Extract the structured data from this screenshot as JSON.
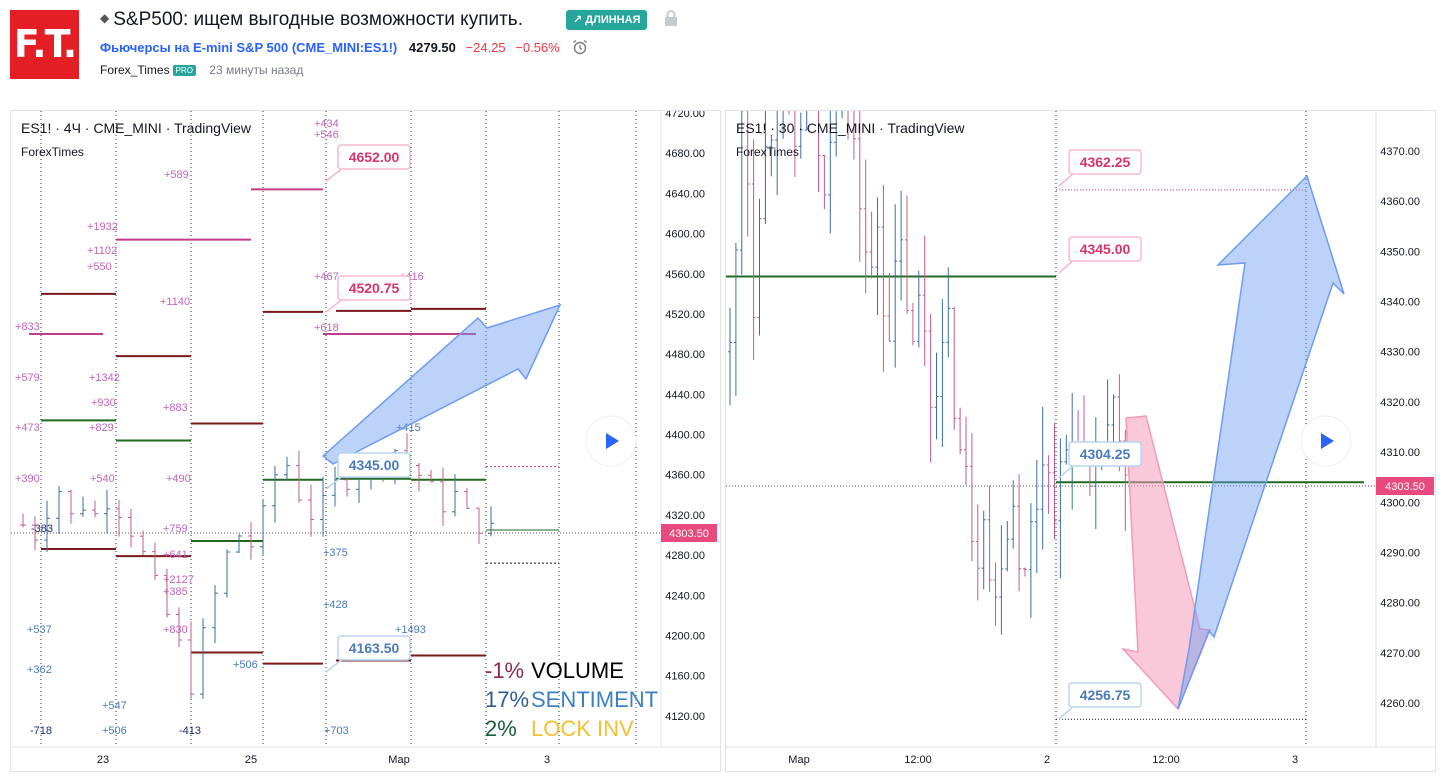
{
  "header": {
    "logo_text": "F.T.",
    "title": "S&P500: ищем выгодные возможности купить.",
    "badge": "↗ ДЛИННАЯ",
    "symbol_name": "Фьючерсы на E-mini S&P 500",
    "symbol_code": "(CME_MINI:ES1!)",
    "price": "4279.50",
    "change": "−24.25",
    "change_pct": "−0.56%",
    "author": "Forex_Times",
    "pro_badge": "PRO",
    "time_ago": "23 минуты назад"
  },
  "colors": {
    "accent": "#26a69a",
    "negative": "#f23645",
    "link": "#2962ff",
    "logo": "#e31e24",
    "price_tag": "#e84a7d",
    "bull_candle": "#3b6ea5",
    "bear_candle": "#c25c8c",
    "arrow_blue": "#6d9cf0",
    "arrow_pink": "#f49ab9"
  },
  "left_chart": {
    "legend": "ES1! · 4Ч · CME_MINI · TradingView",
    "author": "ForexTimes",
    "y_ticks": [
      "4720.00",
      "4680.00",
      "4640.00",
      "4600.00",
      "4560.00",
      "4520.00",
      "4480.00",
      "4440.00",
      "4400.00",
      "4360.00",
      "4320.00",
      "4280.00",
      "4240.00",
      "4200.00",
      "4160.00",
      "4120.00"
    ],
    "x_ticks": [
      "23",
      "25",
      "Мар",
      "3"
    ],
    "current_price": "4303.50",
    "labels": [
      {
        "text": "4652.00",
        "value": 4652,
        "style": "pink"
      },
      {
        "text": "4520.75",
        "value": 4520.75,
        "style": "pink"
      },
      {
        "text": "4345.00",
        "value": 4345,
        "style": "blue"
      },
      {
        "text": "4163.50",
        "value": 4163.5,
        "style": "blue"
      }
    ],
    "pink_annotations": [
      "+434",
      "+546",
      "+589",
      "+1932",
      "+1102",
      "+550",
      "+1140",
      "+467",
      "+416",
      "+833",
      "+618",
      "+579",
      "+1342",
      "+930",
      "+883",
      "+473",
      "+829",
      "+390",
      "+540",
      "+490",
      "+759",
      "+641",
      "+2127",
      "+385",
      "+830"
    ],
    "blue_annotations": [
      "-383",
      "+415",
      "+375",
      "+428",
      "+537",
      "+1493",
      "+362",
      "+506",
      "+547",
      "+506",
      "-718",
      "-413",
      "+703"
    ],
    "stats": [
      {
        "value": "-1%",
        "label": "VOLUME",
        "value_color": "#8b2c55",
        "label_color": "#000000"
      },
      {
        "value": "17%",
        "label": "SENTIMENT",
        "value_color": "#2f5c92",
        "label_color": "#3b80c3"
      },
      {
        "value": "2%",
        "label": "LOCK INV",
        "value_color": "#1b5e3a",
        "label_color": "#f2c12e"
      }
    ],
    "play_icon": "play-icon"
  },
  "right_chart": {
    "legend": "ES1! · 30 · CME_MINI · TradingView",
    "author": "ForexTimes",
    "y_ticks": [
      "4370.00",
      "4360.00",
      "4350.00",
      "4340.00",
      "4330.00",
      "4320.00",
      "4310.00",
      "4300.00",
      "4290.00",
      "4280.00",
      "4270.00",
      "4260.00"
    ],
    "x_ticks": [
      "Мар",
      "12:00",
      "2",
      "12:00",
      "3"
    ],
    "current_price": "4303.50",
    "labels": [
      {
        "text": "4362.25",
        "value": 4362.25,
        "style": "pink"
      },
      {
        "text": "4345.00",
        "value": 4345,
        "style": "pink"
      },
      {
        "text": "4304.25",
        "value": 4304.25,
        "style": "blue"
      },
      {
        "text": "4256.75",
        "value": 4256.75,
        "style": "blue"
      }
    ],
    "play_icon": "play-icon"
  }
}
